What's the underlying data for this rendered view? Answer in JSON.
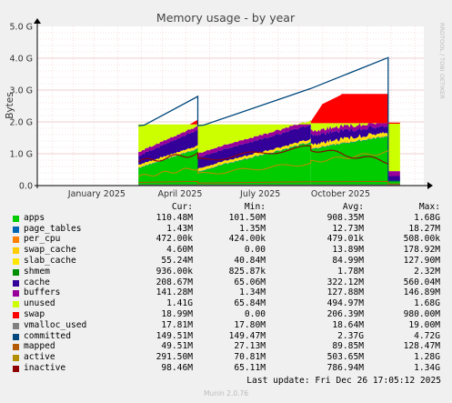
{
  "chart_data": {
    "type": "area",
    "title": "Memory usage - by year",
    "ylabel": "Bytes",
    "side_label": "RRDTOOL / TOBI OETIKER",
    "y_ticks": [
      "0.0",
      "1.0 G",
      "2.0 G",
      "3.0 G",
      "4.0 G",
      "5.0 G"
    ],
    "ylim": [
      0,
      5
    ],
    "x_ticks": [
      "January 2025",
      "April 2025",
      "July 2025",
      "October 2025"
    ],
    "grid": true,
    "legend_headers": {
      "cur": "Cur:",
      "min": "Min:",
      "avg": "Avg:",
      "max": "Max:"
    },
    "series": [
      {
        "name": "apps",
        "color": "#00cc00",
        "cur": "110.48M",
        "min": "101.50M",
        "avg": "908.35M",
        "max": "1.68G"
      },
      {
        "name": "page_tables",
        "color": "#0066b3",
        "cur": "1.43M",
        "min": "1.35M",
        "avg": "12.73M",
        "max": "18.27M"
      },
      {
        "name": "per_cpu",
        "color": "#ff8000",
        "cur": "472.00k",
        "min": "424.00k",
        "avg": "479.01k",
        "max": "508.00k"
      },
      {
        "name": "swap_cache",
        "color": "#ffcc00",
        "cur": "4.60M",
        "min": "0.00",
        "avg": "13.89M",
        "max": "178.92M"
      },
      {
        "name": "slab_cache",
        "color": "#ffe600",
        "cur": "55.24M",
        "min": "40.84M",
        "avg": "84.99M",
        "max": "127.90M"
      },
      {
        "name": "shmem",
        "color": "#008f00",
        "cur": "936.00k",
        "min": "825.87k",
        "avg": "1.78M",
        "max": "2.32M"
      },
      {
        "name": "cache",
        "color": "#330099",
        "cur": "208.67M",
        "min": "65.06M",
        "avg": "322.12M",
        "max": "560.04M"
      },
      {
        "name": "buffers",
        "color": "#990099",
        "cur": "141.28M",
        "min": "1.34M",
        "avg": "127.88M",
        "max": "146.89M"
      },
      {
        "name": "unused",
        "color": "#ccff00",
        "cur": "1.41G",
        "min": "65.84M",
        "avg": "494.97M",
        "max": "1.68G"
      },
      {
        "name": "swap",
        "color": "#ff0000",
        "cur": "18.99M",
        "min": "0.00",
        "avg": "206.39M",
        "max": "980.00M"
      },
      {
        "name": "vmalloc_used",
        "color": "#808080",
        "cur": "17.81M",
        "min": "17.80M",
        "avg": "18.64M",
        "max": "19.00M"
      },
      {
        "name": "committed",
        "color": "#00487d",
        "cur": "149.51M",
        "min": "149.47M",
        "avg": "2.37G",
        "max": "4.72G"
      },
      {
        "name": "mapped",
        "color": "#b35a00",
        "cur": "49.51M",
        "min": "27.13M",
        "avg": "89.85M",
        "max": "128.47M"
      },
      {
        "name": "active",
        "color": "#b38f00",
        "cur": "291.50M",
        "min": "70.81M",
        "avg": "503.65M",
        "max": "1.28G"
      },
      {
        "name": "inactive",
        "color": "#8f0000",
        "cur": "98.46M",
        "min": "65.11M",
        "avg": "786.94M",
        "max": "1.34G"
      }
    ]
  },
  "footer": {
    "last_update": "Last update: Fri Dec 26 17:05:12 2025",
    "munin": "Munin 2.0.76"
  }
}
